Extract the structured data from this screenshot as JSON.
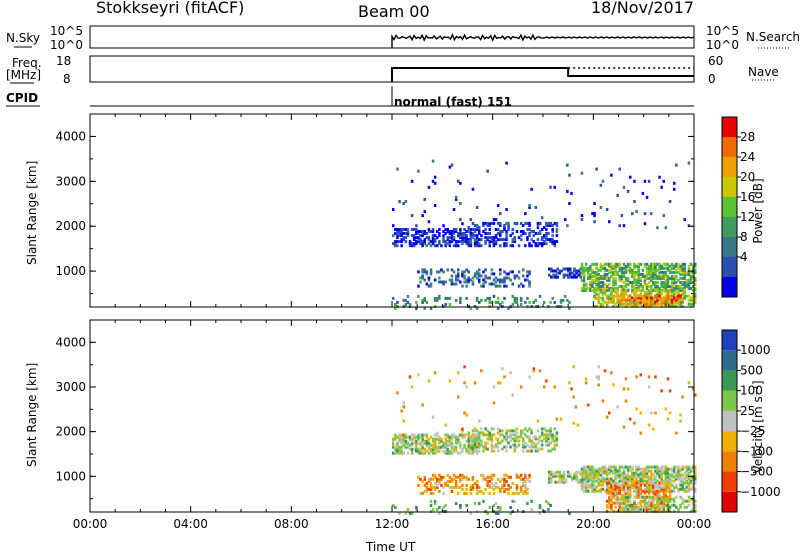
{
  "header": {
    "station": "Stokkseyri (fitACF)",
    "beam": "Beam 00",
    "date": "18/Nov/2017"
  },
  "panels": {
    "nsky": {
      "label": "N.Sky",
      "ticks": [
        "10^5",
        "10^0"
      ],
      "right_ticks": [
        "10^5",
        "10^0"
      ],
      "right_label": "N.Search"
    },
    "freq": {
      "label_line1": "Freq.",
      "label_line2": "[MHz]",
      "ticks": [
        18,
        8
      ],
      "right_ticks": [
        60,
        0
      ],
      "right_label": "Nave"
    },
    "cpid": {
      "label": "CPID",
      "mode_text": "normal (fast) 151"
    }
  },
  "colorbars": {
    "power": {
      "title": "Power [dB]",
      "ticks": [
        "28",
        "24",
        "20",
        "16",
        "12",
        "8",
        "4"
      ],
      "colors": [
        "#0000e6",
        "#2a4fb0",
        "#38768a",
        "#3f9a5f",
        "#58c232",
        "#c8c800",
        "#f0a000",
        "#f06a00",
        "#e60000"
      ]
    },
    "velocity": {
      "title": "Velocity [m s⁻¹]",
      "ticks": [
        "1000",
        "500",
        "100",
        "25",
        "−25",
        "−100",
        "−500",
        "−1000"
      ],
      "colors": [
        "#2040c0",
        "#2f6a8a",
        "#3a9a55",
        "#7ac84a",
        "#c0c0c0",
        "#f0b000",
        "#f08000",
        "#f04000",
        "#e00000"
      ]
    }
  },
  "chart_data": [
    {
      "type": "heatmap",
      "name": "power",
      "ylabel": "Slant Range [km]",
      "ylim": [
        200,
        4500
      ],
      "yticks": [
        1000,
        2000,
        3000,
        4000
      ],
      "xlim": [
        0,
        24
      ],
      "colorscale_label": "Power [dB]",
      "blobs": [
        {
          "t0": 12.0,
          "t1": 15.5,
          "r0": 1600,
          "r1": 2000,
          "dens": 0.55,
          "col": 1
        },
        {
          "t0": 15.0,
          "t1": 18.5,
          "r0": 1600,
          "r1": 2100,
          "dens": 0.35,
          "col": 1
        },
        {
          "t0": 13.0,
          "t1": 17.5,
          "r0": 700,
          "r1": 1100,
          "dens": 0.3,
          "col": 2
        },
        {
          "t0": 18.2,
          "t1": 19.5,
          "r0": 900,
          "r1": 1100,
          "dens": 0.5,
          "col": 1
        },
        {
          "t0": 19.5,
          "t1": 24.0,
          "r0": 600,
          "r1": 1200,
          "dens": 0.65,
          "col": 4
        },
        {
          "t0": 20.0,
          "t1": 24.0,
          "r0": 250,
          "r1": 650,
          "dens": 0.6,
          "col": 5
        },
        {
          "t0": 21.0,
          "t1": 23.5,
          "r0": 300,
          "r1": 500,
          "dens": 0.5,
          "col": 7
        },
        {
          "t0": 12.0,
          "t1": 19.0,
          "r0": 200,
          "r1": 500,
          "dens": 0.15,
          "col": 3
        },
        {
          "t0": 12.0,
          "t1": 24.0,
          "r0": 2000,
          "r1": 3500,
          "dens": 0.02,
          "col": 1
        }
      ]
    },
    {
      "type": "heatmap",
      "name": "velocity",
      "ylabel": "Slant Range [km]",
      "ylim": [
        200,
        4500
      ],
      "yticks": [
        1000,
        2000,
        3000,
        4000
      ],
      "xlim": [
        0,
        24
      ],
      "xticks": [
        "00:00",
        "04:00",
        "08:00",
        "12:00",
        "16:00",
        "20:00",
        "00:00"
      ],
      "xlabel": "Time UT",
      "colorscale_label": "Velocity [m s⁻¹]",
      "blobs": [
        {
          "t0": 12.0,
          "t1": 15.5,
          "r0": 1550,
          "r1": 2000,
          "dens": 0.6,
          "col": 4
        },
        {
          "t0": 15.0,
          "t1": 18.5,
          "r0": 1600,
          "r1": 2100,
          "dens": 0.4,
          "col": 4
        },
        {
          "t0": 13.0,
          "t1": 17.5,
          "r0": 650,
          "r1": 1100,
          "dens": 0.35,
          "col": 6
        },
        {
          "t0": 18.2,
          "t1": 19.8,
          "r0": 900,
          "r1": 1150,
          "dens": 0.55,
          "col": 4
        },
        {
          "t0": 19.5,
          "t1": 24.0,
          "r0": 700,
          "r1": 1250,
          "dens": 0.7,
          "col": 4
        },
        {
          "t0": 20.5,
          "t1": 23.0,
          "r0": 250,
          "r1": 900,
          "dens": 0.55,
          "col": 6
        },
        {
          "t0": 21.0,
          "t1": 24.0,
          "r0": 250,
          "r1": 600,
          "dens": 0.4,
          "col": 4
        },
        {
          "t0": 12.0,
          "t1": 19.0,
          "r0": 200,
          "r1": 500,
          "dens": 0.12,
          "col": 3
        },
        {
          "t0": 12.0,
          "t1": 24.0,
          "r0": 2000,
          "r1": 3500,
          "dens": 0.02,
          "col": 6
        }
      ]
    }
  ]
}
